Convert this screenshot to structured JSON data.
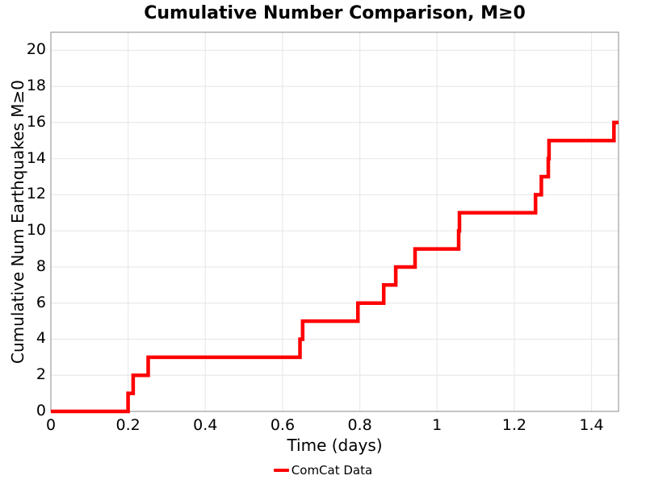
{
  "chart_data": {
    "type": "line",
    "subtype": "cumulative-step",
    "title": "Cumulative Number Comparison, M≥0",
    "xlabel": "Time (days)",
    "ylabel": "Cumulative Num Earthquakes M≥0",
    "legend": [
      {
        "label": "ComCat Data",
        "color": "#ff0000"
      }
    ],
    "legend_position": "bottom-center",
    "grid": true,
    "xlim": [
      0,
      1.47
    ],
    "ylim": [
      0,
      21
    ],
    "xticks": [
      0,
      0.2,
      0.4,
      0.6,
      0.8,
      1.0,
      1.2,
      1.4
    ],
    "xtick_labels": [
      "0",
      "0.2",
      "0.4",
      "0.6",
      "0.8",
      "1",
      "1.2",
      "1.4"
    ],
    "yticks": [
      0,
      2,
      4,
      6,
      8,
      10,
      12,
      14,
      16,
      18,
      20
    ],
    "ytick_labels": [
      "0",
      "2",
      "4",
      "6",
      "8",
      "10",
      "12",
      "14",
      "16",
      "18",
      "20"
    ],
    "series": [
      {
        "name": "ComCat Data",
        "color": "#ff0000",
        "line_width": 4.5,
        "event_times_days": [
          0.2,
          0.213,
          0.252,
          0.645,
          0.652,
          0.795,
          0.862,
          0.893,
          0.943,
          1.056,
          1.058,
          1.255,
          1.27,
          1.288,
          1.29,
          1.458
        ],
        "cumulative_counts": [
          1,
          2,
          3,
          4,
          5,
          6,
          7,
          8,
          9,
          10,
          11,
          12,
          13,
          14,
          15,
          16
        ],
        "start_value": 0,
        "end_time_days": 1.47
      }
    ],
    "colors": {
      "line": "#ff0000",
      "grid": "#e9e9e9",
      "axis_border": "#a6a6a6",
      "text": "#000000",
      "background": "#ffffff"
    }
  }
}
